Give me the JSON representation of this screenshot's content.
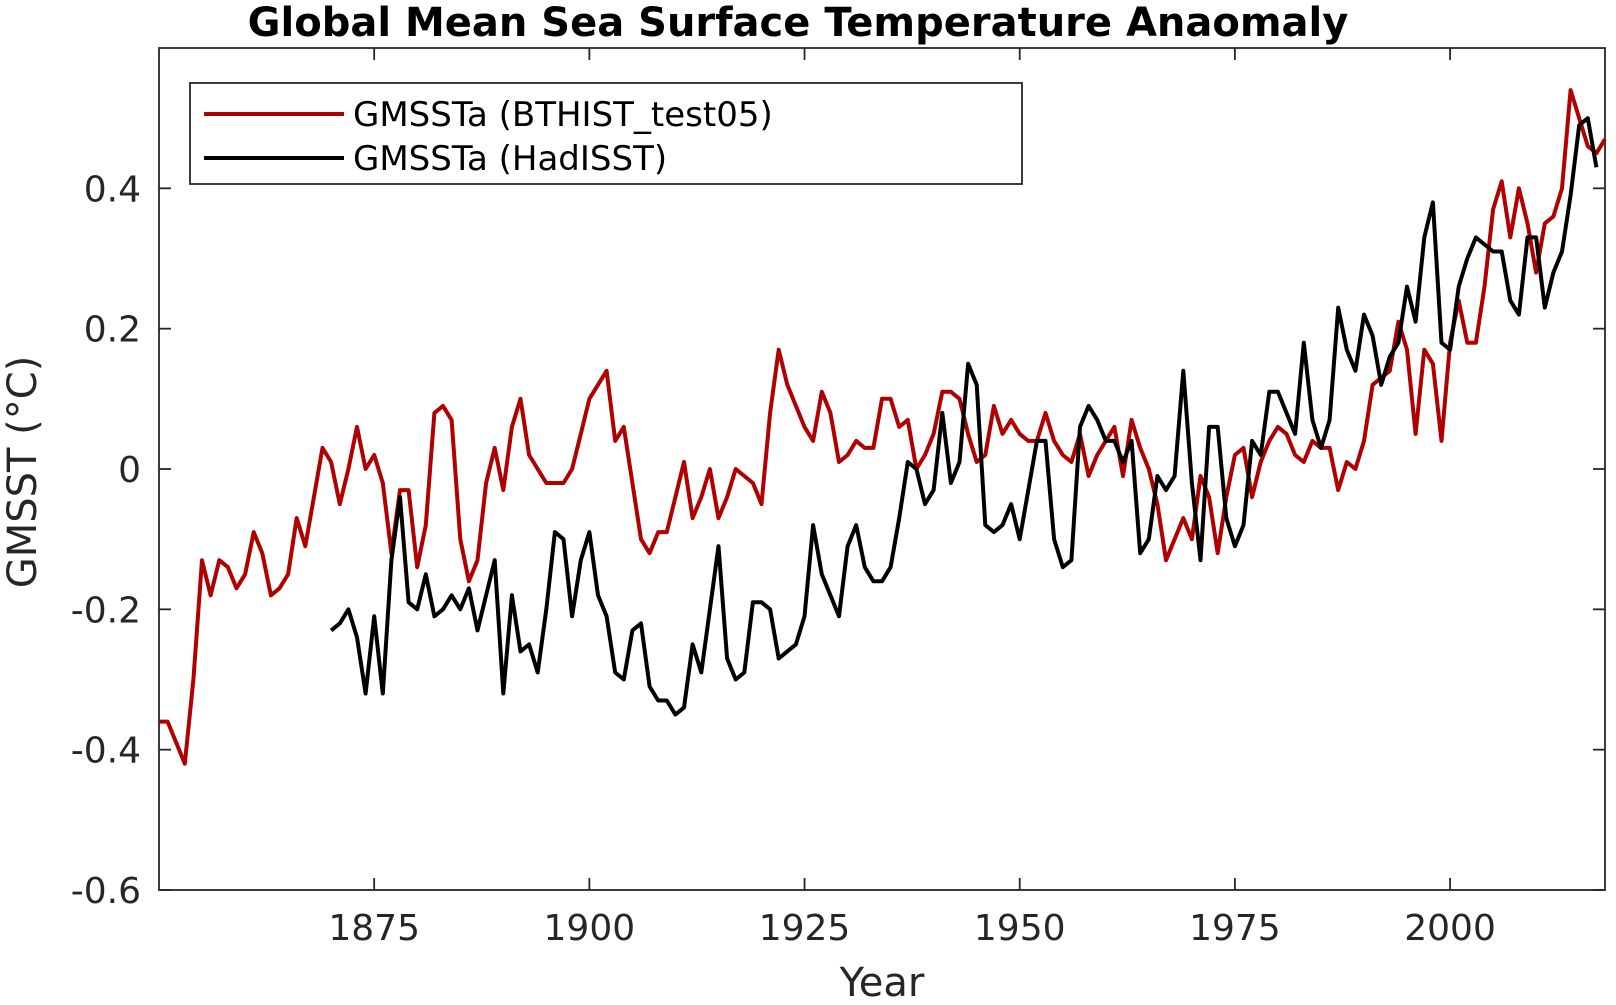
{
  "chart_data": {
    "type": "line",
    "title": "Global Mean Sea Surface Temperature Anaomaly",
    "xlabel": "Year",
    "ylabel": "GMSST (°C)",
    "xlim": [
      1850,
      2018
    ],
    "ylim": [
      -0.6,
      0.6
    ],
    "xticks": [
      1875,
      1900,
      1925,
      1950,
      1975,
      2000
    ],
    "xtick_labels": [
      "1875",
      "1900",
      "1925",
      "1950",
      "1975",
      "2000"
    ],
    "yticks": [
      -0.6,
      -0.4,
      -0.2,
      0,
      0.2,
      0.4
    ],
    "ytick_labels": [
      "-0.6",
      "-0.4",
      "-0.2",
      "0",
      "0.2",
      "0.4"
    ],
    "grid": false,
    "legend_position": "top-left",
    "series": [
      {
        "name": "GMSSTa (BTHIST_test05)",
        "color": "#b00000",
        "x_start": 1850,
        "values": [
          -0.36,
          -0.36,
          -0.39,
          -0.42,
          -0.3,
          -0.13,
          -0.18,
          -0.13,
          -0.14,
          -0.17,
          -0.15,
          -0.09,
          -0.12,
          -0.18,
          -0.17,
          -0.15,
          -0.07,
          -0.11,
          -0.04,
          0.03,
          0.01,
          -0.05,
          0.0,
          0.06,
          0.0,
          0.02,
          -0.02,
          -0.12,
          -0.03,
          -0.03,
          -0.14,
          -0.08,
          0.08,
          0.09,
          0.07,
          -0.1,
          -0.16,
          -0.13,
          -0.02,
          0.03,
          -0.03,
          0.06,
          0.1,
          0.02,
          0.0,
          -0.02,
          -0.02,
          -0.02,
          0.0,
          0.05,
          0.1,
          0.12,
          0.14,
          0.04,
          0.06,
          -0.02,
          -0.1,
          -0.12,
          -0.09,
          -0.09,
          -0.04,
          0.01,
          -0.07,
          -0.04,
          0.0,
          -0.07,
          -0.04,
          0.0,
          -0.01,
          -0.02,
          -0.05,
          0.08,
          0.17,
          0.12,
          0.09,
          0.06,
          0.04,
          0.11,
          0.08,
          0.01,
          0.02,
          0.04,
          0.03,
          0.03,
          0.1,
          0.1,
          0.06,
          0.07,
          0.0,
          0.02,
          0.05,
          0.11,
          0.11,
          0.1,
          0.05,
          0.01,
          0.02,
          0.09,
          0.05,
          0.07,
          0.05,
          0.04,
          0.04,
          0.08,
          0.04,
          0.02,
          0.01,
          0.05,
          -0.01,
          0.02,
          0.04,
          0.06,
          -0.01,
          0.07,
          0.03,
          0.0,
          -0.05,
          -0.13,
          -0.1,
          -0.07,
          -0.1,
          -0.01,
          -0.04,
          -0.12,
          -0.04,
          0.02,
          0.03,
          -0.04,
          0.01,
          0.04,
          0.06,
          0.05,
          0.02,
          0.01,
          0.04,
          0.03,
          0.03,
          -0.03,
          0.01,
          0.0,
          0.04,
          0.12,
          0.13,
          0.14,
          0.21,
          0.17,
          0.05,
          0.17,
          0.15,
          0.04,
          0.18,
          0.24,
          0.18,
          0.18,
          0.26,
          0.37,
          0.41,
          0.33,
          0.4,
          0.35,
          0.28,
          0.35,
          0.36,
          0.4,
          0.54,
          0.5,
          0.46,
          0.45,
          0.47
        ]
      },
      {
        "name": "GMSSTa (HadISST)",
        "color": "#000000",
        "x_start": 1870,
        "values": [
          -0.23,
          -0.22,
          -0.2,
          -0.24,
          -0.32,
          -0.21,
          -0.32,
          -0.13,
          -0.04,
          -0.19,
          -0.2,
          -0.15,
          -0.21,
          -0.2,
          -0.18,
          -0.2,
          -0.17,
          -0.23,
          -0.18,
          -0.13,
          -0.32,
          -0.18,
          -0.26,
          -0.25,
          -0.29,
          -0.2,
          -0.09,
          -0.1,
          -0.21,
          -0.13,
          -0.09,
          -0.18,
          -0.21,
          -0.29,
          -0.3,
          -0.23,
          -0.22,
          -0.31,
          -0.33,
          -0.33,
          -0.35,
          -0.34,
          -0.25,
          -0.29,
          -0.2,
          -0.11,
          -0.27,
          -0.3,
          -0.29,
          -0.19,
          -0.19,
          -0.2,
          -0.27,
          -0.26,
          -0.25,
          -0.21,
          -0.08,
          -0.15,
          -0.18,
          -0.21,
          -0.11,
          -0.08,
          -0.14,
          -0.16,
          -0.16,
          -0.14,
          -0.07,
          0.01,
          0.0,
          -0.05,
          -0.03,
          0.08,
          -0.02,
          0.01,
          0.15,
          0.12,
          -0.08,
          -0.09,
          -0.08,
          -0.05,
          -0.1,
          -0.03,
          0.04,
          0.04,
          -0.1,
          -0.14,
          -0.13,
          0.06,
          0.09,
          0.07,
          0.04,
          0.04,
          0.01,
          0.04,
          -0.12,
          -0.1,
          -0.01,
          -0.03,
          -0.01,
          0.14,
          -0.02,
          -0.13,
          0.06,
          0.06,
          -0.07,
          -0.11,
          -0.08,
          0.04,
          0.02,
          0.11,
          0.11,
          0.08,
          0.05,
          0.18,
          0.07,
          0.03,
          0.07,
          0.23,
          0.17,
          0.14,
          0.22,
          0.19,
          0.12,
          0.16,
          0.18,
          0.26,
          0.21,
          0.33,
          0.38,
          0.18,
          0.17,
          0.26,
          0.3,
          0.33,
          0.32,
          0.31,
          0.31,
          0.24,
          0.22,
          0.33,
          0.33,
          0.23,
          0.28,
          0.31,
          0.39,
          0.49,
          0.5,
          0.43
        ]
      }
    ]
  }
}
